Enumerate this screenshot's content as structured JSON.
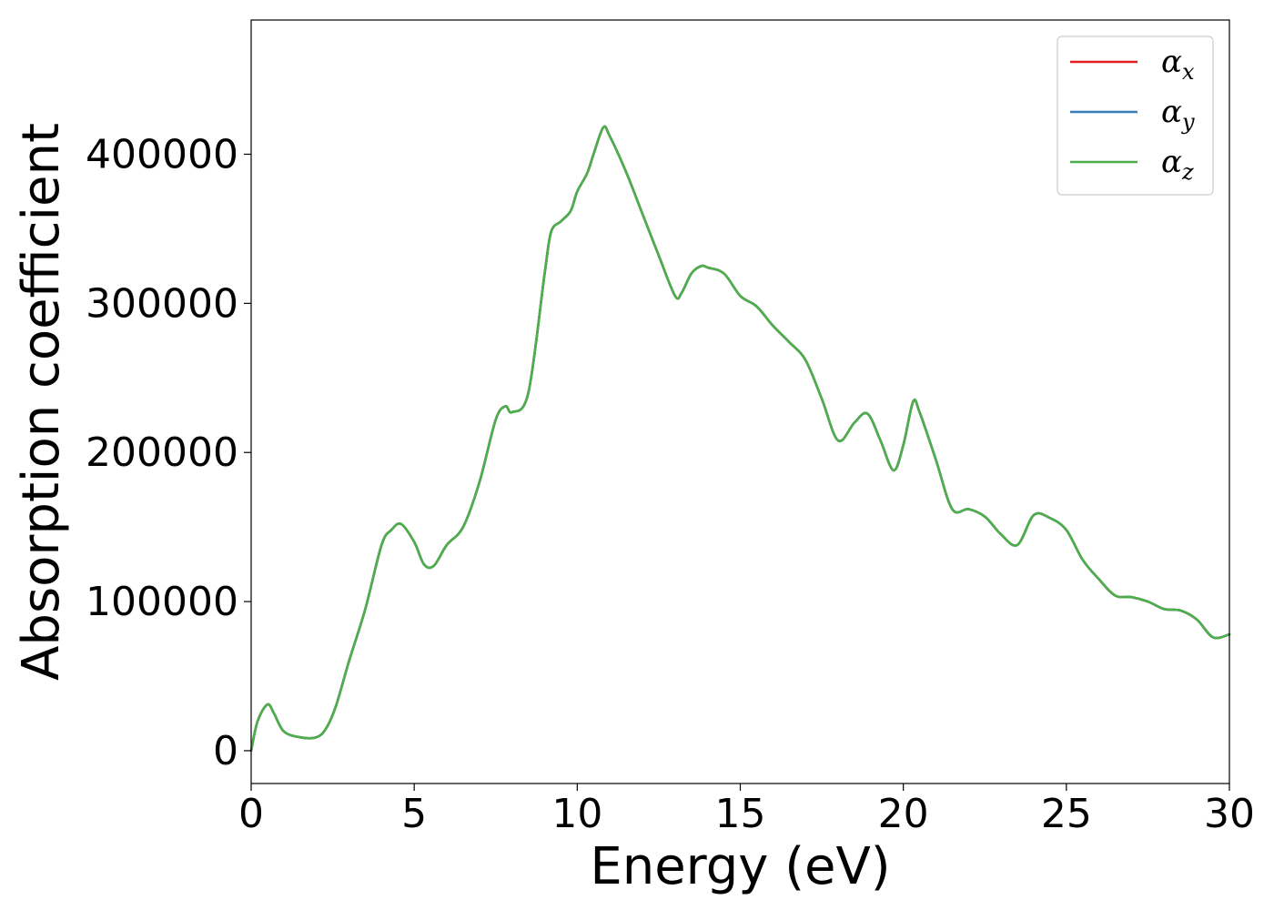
{
  "chart_data": {
    "type": "line",
    "title": "",
    "xlabel": "Energy (eV)",
    "ylabel": "Absorption coefficient",
    "xlim": [
      0,
      30
    ],
    "ylim": [
      -22000,
      490000
    ],
    "xticks": [
      0,
      5,
      10,
      15,
      20,
      25,
      30
    ],
    "yticks": [
      0,
      100000,
      200000,
      300000,
      400000
    ],
    "grid": false,
    "legend_position": "top-right",
    "series": [
      {
        "name": "α",
        "subscript": "x",
        "color": "#e41a1c",
        "x": [
          0,
          0.2,
          0.5,
          0.7,
          1.0,
          1.5,
          2.0,
          2.3,
          2.6,
          3.0,
          3.5,
          4.0,
          4.3,
          4.6,
          5.0,
          5.3,
          5.6,
          6.0,
          6.5,
          7.0,
          7.5,
          7.8,
          8.0,
          8.5,
          9.0,
          9.2,
          9.5,
          9.8,
          10.0,
          10.3,
          10.5,
          10.8,
          11.0,
          11.5,
          12.0,
          12.5,
          13.0,
          13.2,
          13.5,
          13.8,
          14.0,
          14.5,
          15.0,
          15.5,
          16.0,
          16.5,
          17.0,
          17.5,
          18.0,
          18.5,
          18.9,
          19.3,
          19.7,
          20.0,
          20.3,
          20.5,
          21.0,
          21.5,
          22.0,
          22.5,
          23.0,
          23.5,
          24.0,
          24.5,
          25.0,
          25.5,
          26.0,
          26.5,
          27.0,
          27.5,
          28.0,
          28.5,
          29.0,
          29.5,
          30.0
        ],
        "y": [
          0,
          20000,
          31000,
          25000,
          13000,
          9000,
          9000,
          15000,
          30000,
          60000,
          95000,
          138000,
          148000,
          152000,
          140000,
          125000,
          124000,
          138000,
          150000,
          180000,
          222000,
          231000,
          227000,
          240000,
          320000,
          348000,
          355000,
          362000,
          375000,
          387000,
          400000,
          418000,
          412000,
          388000,
          360000,
          332000,
          305000,
          307000,
          320000,
          325000,
          324000,
          320000,
          305000,
          298000,
          285000,
          274000,
          262000,
          236000,
          208000,
          220000,
          226000,
          208000,
          188000,
          205000,
          234000,
          227000,
          195000,
          162000,
          162000,
          157000,
          145000,
          138000,
          158000,
          156000,
          148000,
          128000,
          115000,
          104000,
          103000,
          100000,
          95000,
          94000,
          88000,
          76000,
          78000
        ]
      },
      {
        "name": "α",
        "subscript": "y",
        "color": "#377eb8",
        "x": [
          0,
          0.2,
          0.5,
          0.7,
          1.0,
          1.5,
          2.0,
          2.3,
          2.6,
          3.0,
          3.5,
          4.0,
          4.3,
          4.6,
          5.0,
          5.3,
          5.6,
          6.0,
          6.5,
          7.0,
          7.5,
          7.8,
          8.0,
          8.5,
          9.0,
          9.2,
          9.5,
          9.8,
          10.0,
          10.3,
          10.5,
          10.8,
          11.0,
          11.5,
          12.0,
          12.5,
          13.0,
          13.2,
          13.5,
          13.8,
          14.0,
          14.5,
          15.0,
          15.5,
          16.0,
          16.5,
          17.0,
          17.5,
          18.0,
          18.5,
          18.9,
          19.3,
          19.7,
          20.0,
          20.3,
          20.5,
          21.0,
          21.5,
          22.0,
          22.5,
          23.0,
          23.5,
          24.0,
          24.5,
          25.0,
          25.5,
          26.0,
          26.5,
          27.0,
          27.5,
          28.0,
          28.5,
          29.0,
          29.5,
          30.0
        ],
        "y": [
          0,
          20000,
          31000,
          25000,
          13000,
          9000,
          9000,
          15000,
          30000,
          60000,
          95000,
          138000,
          148000,
          152000,
          140000,
          125000,
          124000,
          138000,
          150000,
          180000,
          222000,
          231000,
          227000,
          240000,
          320000,
          348000,
          355000,
          362000,
          375000,
          387000,
          400000,
          418000,
          412000,
          388000,
          360000,
          332000,
          305000,
          307000,
          320000,
          325000,
          324000,
          320000,
          305000,
          298000,
          285000,
          274000,
          262000,
          236000,
          208000,
          220000,
          226000,
          208000,
          188000,
          205000,
          234000,
          227000,
          195000,
          162000,
          162000,
          157000,
          145000,
          138000,
          158000,
          156000,
          148000,
          128000,
          115000,
          104000,
          103000,
          100000,
          95000,
          94000,
          88000,
          76000,
          78000
        ]
      },
      {
        "name": "α",
        "subscript": "z",
        "color": "#4daf4a",
        "x": [
          0,
          0.2,
          0.5,
          0.7,
          1.0,
          1.5,
          2.0,
          2.3,
          2.6,
          3.0,
          3.5,
          4.0,
          4.3,
          4.6,
          5.0,
          5.3,
          5.6,
          6.0,
          6.5,
          7.0,
          7.5,
          7.8,
          8.0,
          8.5,
          9.0,
          9.2,
          9.5,
          9.8,
          10.0,
          10.3,
          10.5,
          10.8,
          11.0,
          11.5,
          12.0,
          12.5,
          13.0,
          13.2,
          13.5,
          13.8,
          14.0,
          14.5,
          15.0,
          15.5,
          16.0,
          16.5,
          17.0,
          17.5,
          18.0,
          18.5,
          18.9,
          19.3,
          19.7,
          20.0,
          20.3,
          20.5,
          21.0,
          21.5,
          22.0,
          22.5,
          23.0,
          23.5,
          24.0,
          24.5,
          25.0,
          25.5,
          26.0,
          26.5,
          27.0,
          27.5,
          28.0,
          28.5,
          29.0,
          29.5,
          30.0
        ],
        "y": [
          0,
          20000,
          31000,
          25000,
          13000,
          9000,
          9000,
          15000,
          30000,
          60000,
          95000,
          138000,
          148000,
          152000,
          140000,
          125000,
          124000,
          138000,
          150000,
          180000,
          222000,
          231000,
          227000,
          240000,
          320000,
          348000,
          355000,
          362000,
          375000,
          387000,
          400000,
          418000,
          412000,
          388000,
          360000,
          332000,
          305000,
          307000,
          320000,
          325000,
          324000,
          320000,
          305000,
          298000,
          285000,
          274000,
          262000,
          236000,
          208000,
          220000,
          226000,
          208000,
          188000,
          205000,
          234000,
          227000,
          195000,
          162000,
          162000,
          157000,
          145000,
          138000,
          158000,
          156000,
          148000,
          128000,
          115000,
          104000,
          103000,
          100000,
          95000,
          94000,
          88000,
          76000,
          78000
        ]
      }
    ]
  }
}
